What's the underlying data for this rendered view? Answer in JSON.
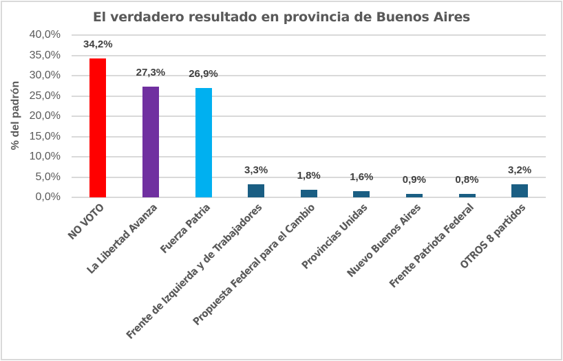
{
  "chart_data": {
    "type": "bar",
    "title": "El verdadero resultado en provincia de Buenos Aires",
    "xlabel": "",
    "ylabel": "% del padrón",
    "ylim": [
      0,
      40
    ],
    "yticks": [
      "0,0%",
      "5,0%",
      "10,0%",
      "15,0%",
      "20,0%",
      "25,0%",
      "30,0%",
      "35,0%",
      "40,0%"
    ],
    "grid": true,
    "legend": null,
    "categories": [
      "NO VOTO",
      "La Libertad Avanza",
      "Fuerza Patria",
      "Frente de Izquierda y de Trabajadores",
      "Propuesta Federal para el Cambio",
      "Provincias Unidas",
      "Nuevo Buenos Aires",
      "Frente Patriota Federal",
      "OTROS 8 partidos"
    ],
    "values": [
      34.2,
      27.3,
      26.9,
      3.3,
      1.8,
      1.6,
      0.9,
      0.8,
      3.2
    ],
    "data_labels": [
      "34,2%",
      "27,3%",
      "26,9%",
      "3,3%",
      "1,8%",
      "1,6%",
      "0,9%",
      "0,8%",
      "3,2%"
    ],
    "colors": [
      "#ff0000",
      "#7030a0",
      "#00b0f0",
      "#1a5e83",
      "#1a5e83",
      "#1a5e83",
      "#1a5e83",
      "#1a5e83",
      "#1a5e83"
    ]
  }
}
